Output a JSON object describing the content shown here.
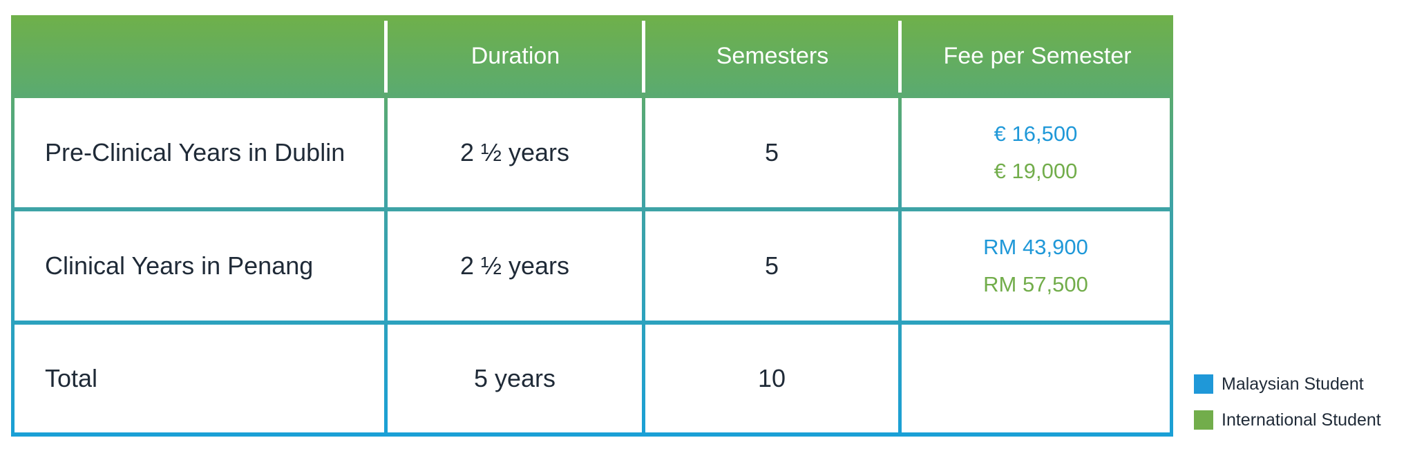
{
  "colors": {
    "malaysian": "#1f98d8",
    "international": "#72ad4b"
  },
  "header": {
    "col0": "",
    "col1": "Duration",
    "col2": "Semesters",
    "col3": "Fee per Semester"
  },
  "rows": [
    {
      "label": "Pre-Clinical Years in Dublin",
      "duration": "2 ½ years",
      "semesters": "5",
      "fee_malaysian": "€ 16,500",
      "fee_international": "€ 19,000"
    },
    {
      "label": "Clinical Years in Penang",
      "duration": "2 ½ years",
      "semesters": "5",
      "fee_malaysian": "RM 43,900",
      "fee_international": "RM 57,500"
    },
    {
      "label": "Total",
      "duration": "5 years",
      "semesters": "10",
      "fee_malaysian": "",
      "fee_international": ""
    }
  ],
  "legend": [
    {
      "label": "Malaysian Student",
      "color_key": "malaysian"
    },
    {
      "label": "International Student",
      "color_key": "international"
    }
  ]
}
